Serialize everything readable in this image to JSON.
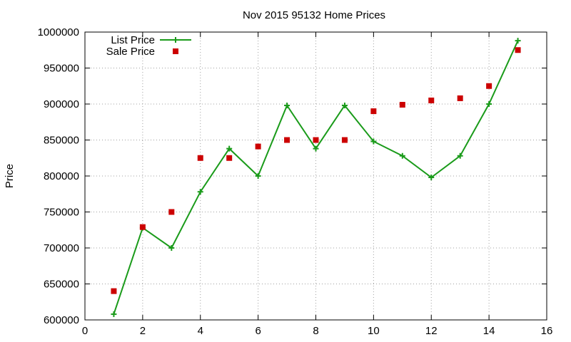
{
  "chart_data": {
    "type": "line",
    "title": "Nov 2015 95132 Home Prices",
    "xlabel": "",
    "ylabel": "Price",
    "xlim": [
      0,
      16
    ],
    "ylim": [
      600000,
      1000000
    ],
    "xticks": [
      0,
      2,
      4,
      6,
      8,
      10,
      12,
      14,
      16
    ],
    "yticks": [
      600000,
      650000,
      700000,
      750000,
      800000,
      850000,
      900000,
      950000,
      1000000
    ],
    "grid": true,
    "legend_position": "top-left",
    "series": [
      {
        "name": "List Price",
        "kind": "line+points",
        "marker": "plus",
        "color": "#1a9b1a",
        "x": [
          1,
          2,
          3,
          4,
          5,
          6,
          7,
          8,
          9,
          10,
          11,
          12,
          13,
          14,
          15
        ],
        "y": [
          608000,
          728000,
          700000,
          778000,
          838000,
          800000,
          898000,
          838000,
          898000,
          848000,
          828000,
          798000,
          828000,
          900000,
          988000
        ]
      },
      {
        "name": "Sale Price",
        "kind": "points",
        "marker": "square",
        "color": "#cc0000",
        "x": [
          1,
          2,
          3,
          4,
          5,
          6,
          7,
          8,
          9,
          10,
          11,
          12,
          13,
          14,
          15
        ],
        "y": [
          640000,
          729000,
          750000,
          825000,
          825000,
          841000,
          850000,
          850000,
          850000,
          890000,
          899000,
          905000,
          908000,
          925000,
          975000
        ]
      }
    ]
  }
}
